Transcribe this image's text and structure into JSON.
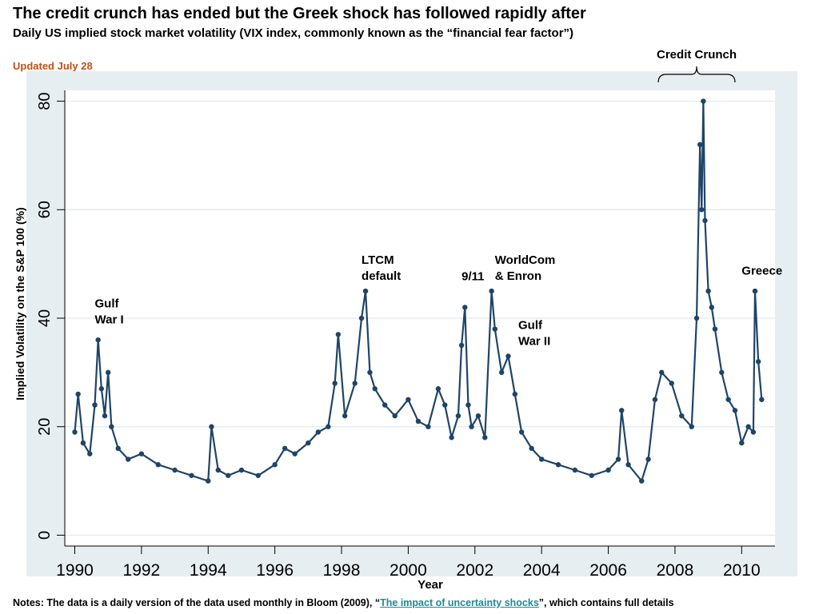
{
  "page": {
    "title": "The credit crunch has ended but the Greek shock has followed rapidly after",
    "subtitle": "Daily US implied stock market volatility (VIX index, commonly known as the “financial fear factor”)",
    "updated": "Updated July 28",
    "notes_prefix": "Notes: The data is a daily version of the data used monthly in Bloom (2009), “",
    "notes_link": "The impact of uncertainty shocks",
    "notes_suffix": "”, which contains full details"
  },
  "colors": {
    "series": "#1f4466",
    "panel": "#e7eef2",
    "grid": "#e3e8ec",
    "updated": "#c0501a",
    "link": "#1a8a9a"
  },
  "chart_data": {
    "type": "line",
    "xlabel": "Year",
    "ylabel": "Implied Volatility on the S&P 100 (%)",
    "xlim": [
      1989.7,
      2011.0
    ],
    "ylim": [
      -2,
      82
    ],
    "x_ticks": [
      1990,
      1992,
      1994,
      1996,
      1998,
      2000,
      2002,
      2004,
      2006,
      2008,
      2010
    ],
    "x_tick_labels": [
      "1990",
      "1992",
      "1994",
      "1996",
      "1998",
      "2000",
      "2002",
      "2004",
      "2006",
      "2008",
      "2010"
    ],
    "y_ticks": [
      0,
      20,
      40,
      60,
      80
    ],
    "y_tick_labels": [
      "0",
      "20",
      "40",
      "60",
      "80"
    ],
    "grid": true,
    "series": [
      {
        "name": "",
        "x": [
          1990.0,
          1990.1,
          1990.25,
          1990.45,
          1990.6,
          1990.7,
          1990.8,
          1990.9,
          1991.0,
          1991.1,
          1991.3,
          1991.6,
          1992.0,
          1992.5,
          1993.0,
          1993.5,
          1994.0,
          1994.1,
          1994.3,
          1994.6,
          1995.0,
          1995.5,
          1996.0,
          1996.3,
          1996.6,
          1997.0,
          1997.3,
          1997.6,
          1997.8,
          1997.9,
          1998.1,
          1998.4,
          1998.6,
          1998.72,
          1998.85,
          1999.0,
          1999.3,
          1999.6,
          2000.0,
          2000.3,
          2000.6,
          2000.9,
          2001.1,
          2001.3,
          2001.5,
          2001.6,
          2001.7,
          2001.8,
          2001.9,
          2002.1,
          2002.3,
          2002.5,
          2002.6,
          2002.8,
          2003.0,
          2003.2,
          2003.4,
          2003.7,
          2004.0,
          2004.5,
          2005.0,
          2005.5,
          2006.0,
          2006.3,
          2006.4,
          2006.6,
          2007.0,
          2007.2,
          2007.4,
          2007.6,
          2007.9,
          2008.2,
          2008.5,
          2008.65,
          2008.75,
          2008.8,
          2008.85,
          2008.9,
          2009.0,
          2009.1,
          2009.2,
          2009.4,
          2009.6,
          2009.8,
          2010.0,
          2010.2,
          2010.35,
          2010.4,
          2010.5,
          2010.6
        ],
        "y": [
          19,
          26,
          17,
          15,
          24,
          36,
          27,
          22,
          30,
          20,
          16,
          14,
          15,
          13,
          12,
          11,
          10,
          20,
          12,
          11,
          12,
          11,
          13,
          16,
          15,
          17,
          19,
          20,
          28,
          37,
          22,
          28,
          40,
          45,
          30,
          27,
          24,
          22,
          25,
          21,
          20,
          27,
          24,
          18,
          22,
          35,
          42,
          24,
          20,
          22,
          18,
          45,
          38,
          30,
          33,
          26,
          19,
          16,
          14,
          13,
          12,
          11,
          12,
          14,
          23,
          13,
          10,
          14,
          25,
          30,
          28,
          22,
          20,
          40,
          72,
          60,
          80,
          58,
          45,
          42,
          38,
          30,
          25,
          23,
          17,
          20,
          19,
          45,
          32,
          25
        ]
      }
    ],
    "annotations": [
      {
        "text": "Gulf\nWar I",
        "x": 1990.6,
        "y": 42
      },
      {
        "text": "LTCM\ndefault",
        "x": 1998.6,
        "y": 50
      },
      {
        "text": "9/11",
        "x": 2001.6,
        "y": 47
      },
      {
        "text": "WorldCom\n& Enron",
        "x": 2002.6,
        "y": 50
      },
      {
        "text": "Gulf\nWar II",
        "x": 2003.3,
        "y": 38
      },
      {
        "text": "Greece",
        "x": 2010.0,
        "y": 48
      }
    ],
    "brace_annotation": {
      "text": "Credit Crunch",
      "x_start": 2007.5,
      "x_end": 2009.8
    }
  }
}
